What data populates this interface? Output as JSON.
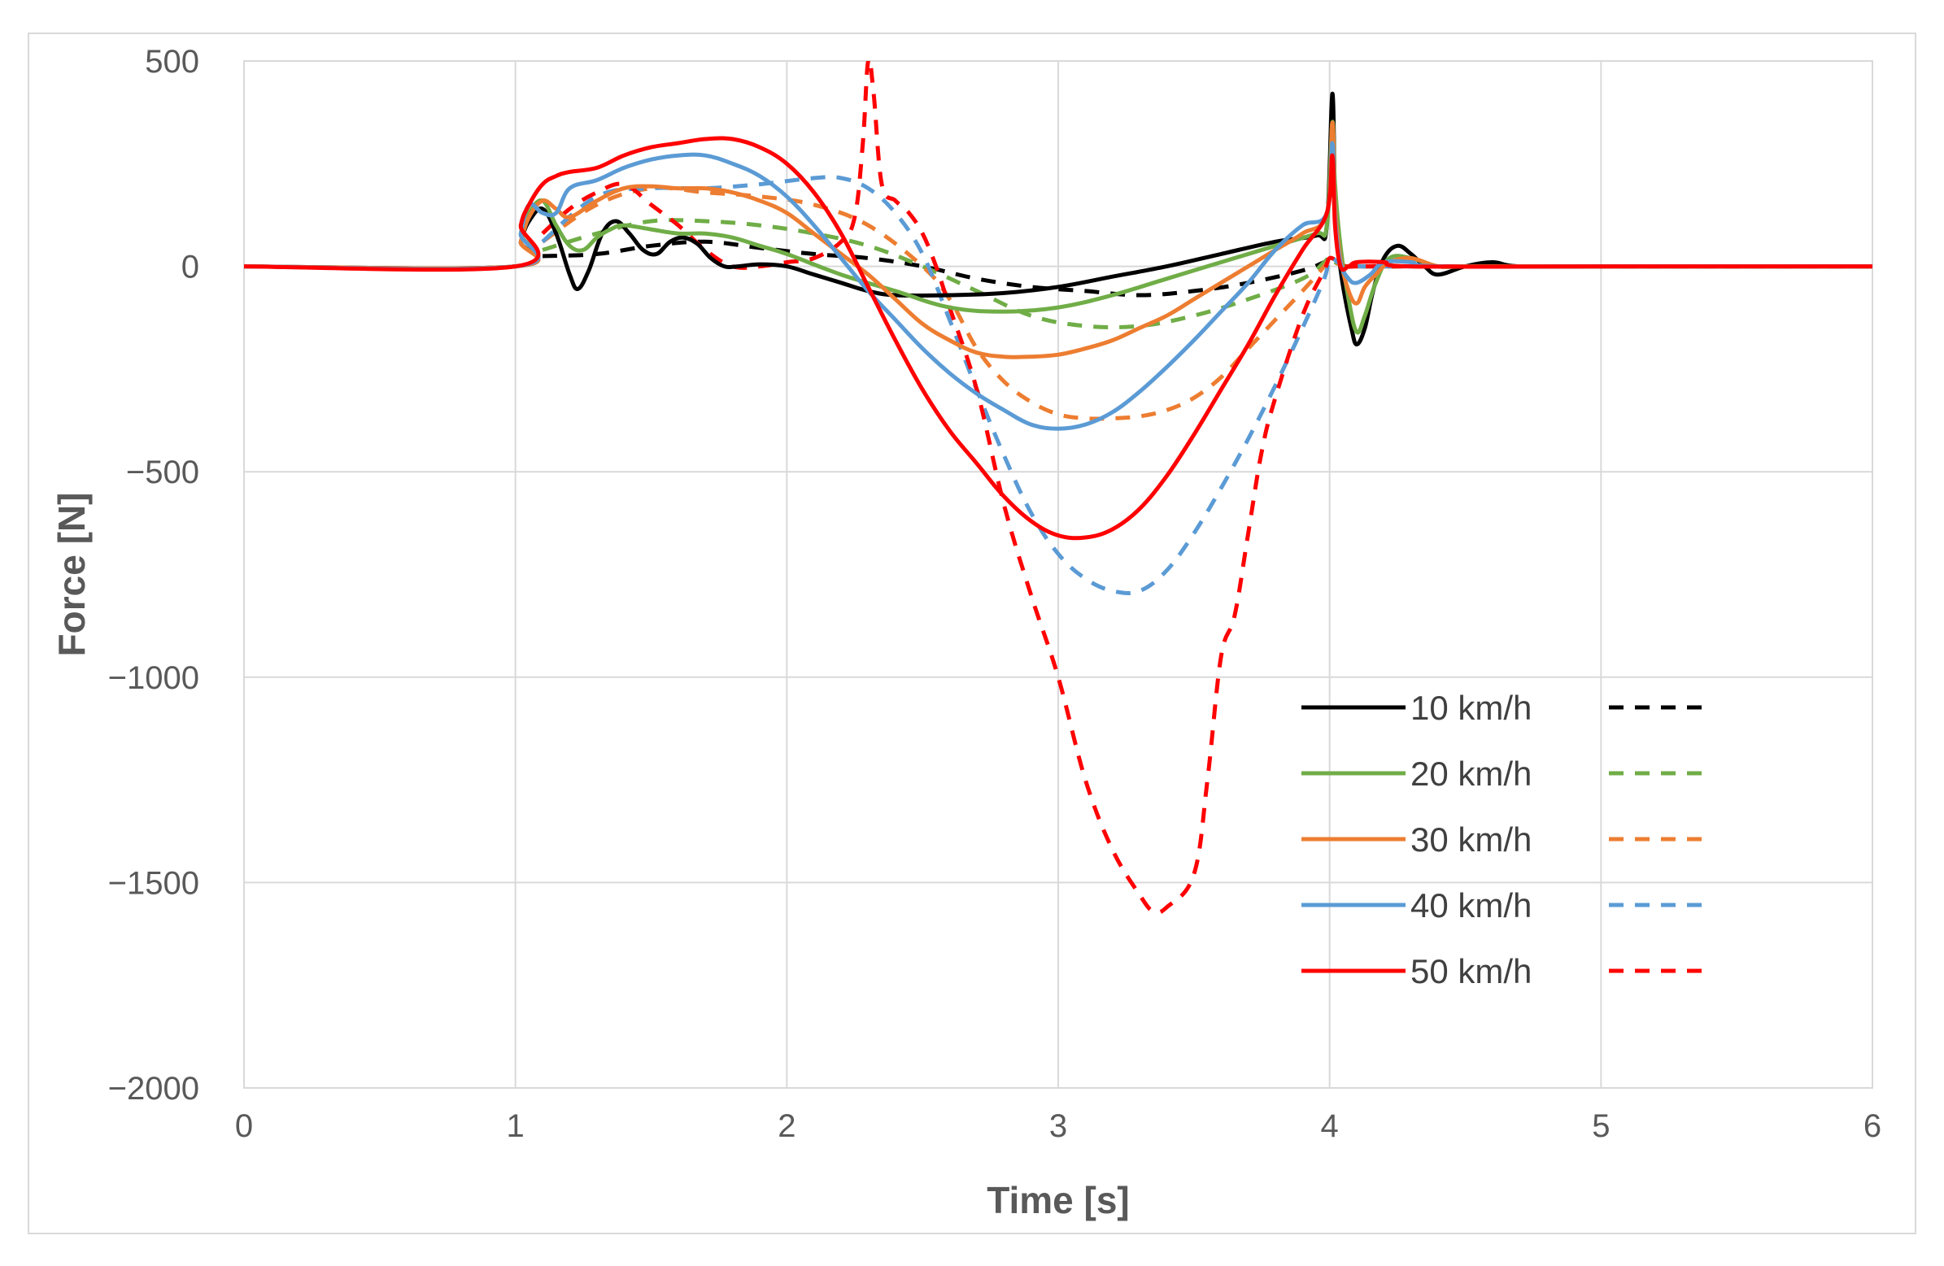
{
  "chart_data": {
    "type": "line",
    "title": "",
    "xlabel": "Time [s]",
    "ylabel": "Force [N]",
    "xlim": [
      0,
      6
    ],
    "ylim": [
      -2000,
      500
    ],
    "xticks": [
      0,
      1,
      2,
      3,
      4,
      5,
      6
    ],
    "yticks": [
      500,
      0,
      -500,
      -1000,
      -1500,
      -2000
    ],
    "xtick_labels": [
      "0",
      "1",
      "2",
      "3",
      "4",
      "5",
      "6"
    ],
    "ytick_labels": [
      "500",
      "0",
      "−500",
      "−1000",
      "−1500",
      "−2000"
    ],
    "grid": true,
    "legend_position": "bottom-right",
    "legend": [
      {
        "label": "10 km/h",
        "color": "#000000"
      },
      {
        "label": "20 km/h",
        "color": "#70ad47"
      },
      {
        "label": "30 km/h",
        "color": "#ed7d31"
      },
      {
        "label": "40 km/h",
        "color": "#5b9bd5"
      },
      {
        "label": "50 km/h",
        "color": "#ff0000"
      }
    ],
    "series": [
      {
        "name": "10 km/h solid",
        "color": "#000000",
        "dash": false,
        "x": [
          0,
          1.0,
          1.02,
          1.05,
          1.1,
          1.15,
          1.2,
          1.23,
          1.27,
          1.32,
          1.37,
          1.42,
          1.47,
          1.52,
          1.57,
          1.62,
          1.67,
          1.72,
          1.77,
          1.82,
          1.9,
          2.0,
          2.1,
          2.2,
          2.3,
          2.4,
          2.6,
          2.8,
          3.0,
          3.2,
          3.4,
          3.6,
          3.8,
          3.95,
          3.99,
          4.01,
          4.02,
          4.03,
          4.05,
          4.08,
          4.1,
          4.13,
          4.16,
          4.2,
          4.25,
          4.3,
          4.35,
          4.4,
          4.5,
          4.6,
          4.7,
          5,
          6
        ],
        "y": [
          0,
          0,
          60,
          110,
          140,
          80,
          -20,
          -55,
          -10,
          80,
          110,
          80,
          40,
          30,
          60,
          70,
          55,
          20,
          0,
          0,
          5,
          0,
          -20,
          -40,
          -60,
          -70,
          -70,
          -65,
          -50,
          -25,
          0,
          30,
          60,
          75,
          100,
          420,
          150,
          50,
          -50,
          -150,
          -190,
          -150,
          -60,
          20,
          50,
          30,
          0,
          -20,
          0,
          10,
          0,
          0,
          0
        ]
      },
      {
        "name": "10 km/h dashed",
        "color": "#000000",
        "dash": true,
        "x": [
          1.1,
          1.3,
          1.5,
          1.7,
          1.9,
          2.1,
          2.3,
          2.5,
          2.7,
          2.9,
          3.1,
          3.3,
          3.5,
          3.7,
          3.9,
          3.98,
          4.0,
          4.02,
          4.05,
          4.1,
          4.2,
          5,
          6
        ],
        "y": [
          25,
          30,
          50,
          60,
          45,
          30,
          20,
          0,
          -30,
          -50,
          -60,
          -70,
          -60,
          -40,
          -10,
          10,
          15,
          5,
          0,
          0,
          0,
          0,
          0
        ]
      },
      {
        "name": "20 km/h solid",
        "color": "#70ad47",
        "dash": false,
        "x": [
          0,
          1.0,
          1.02,
          1.05,
          1.1,
          1.15,
          1.2,
          1.25,
          1.3,
          1.35,
          1.4,
          1.5,
          1.6,
          1.7,
          1.8,
          1.9,
          2.0,
          2.2,
          2.4,
          2.6,
          2.8,
          3.0,
          3.2,
          3.4,
          3.6,
          3.8,
          3.95,
          3.99,
          4.01,
          4.02,
          4.04,
          4.07,
          4.1,
          4.13,
          4.17,
          4.22,
          4.3,
          4.4,
          4.5,
          4.6,
          5,
          6
        ],
        "y": [
          0,
          0,
          80,
          130,
          160,
          100,
          50,
          40,
          70,
          90,
          100,
          90,
          80,
          80,
          70,
          50,
          30,
          -20,
          -60,
          -100,
          -110,
          -100,
          -70,
          -30,
          10,
          50,
          80,
          100,
          350,
          200,
          50,
          -80,
          -160,
          -120,
          -40,
          20,
          20,
          0,
          0,
          0,
          0,
          0
        ]
      },
      {
        "name": "20 km/h dashed",
        "color": "#70ad47",
        "dash": true,
        "x": [
          1.1,
          1.3,
          1.5,
          1.7,
          1.9,
          2.1,
          2.3,
          2.5,
          2.7,
          2.9,
          3.1,
          3.3,
          3.5,
          3.7,
          3.9,
          3.98,
          4.0,
          4.02,
          4.06,
          4.1,
          4.2,
          5,
          6
        ],
        "y": [
          40,
          80,
          110,
          110,
          100,
          80,
          50,
          0,
          -60,
          -120,
          -145,
          -145,
          -120,
          -80,
          -30,
          10,
          25,
          10,
          0,
          0,
          0,
          0,
          0
        ]
      },
      {
        "name": "30 km/h solid",
        "color": "#ed7d31",
        "dash": false,
        "x": [
          0,
          1.0,
          1.02,
          1.05,
          1.1,
          1.15,
          1.2,
          1.3,
          1.4,
          1.5,
          1.6,
          1.7,
          1.8,
          1.9,
          2.0,
          2.1,
          2.2,
          2.3,
          2.4,
          2.5,
          2.6,
          2.7,
          2.8,
          2.9,
          3.0,
          3.1,
          3.2,
          3.3,
          3.4,
          3.5,
          3.6,
          3.7,
          3.8,
          3.9,
          3.99,
          4.01,
          4.02,
          4.04,
          4.07,
          4.1,
          4.13,
          4.17,
          4.22,
          4.3,
          4.4,
          4.5,
          5,
          6
        ],
        "y": [
          0,
          0,
          60,
          120,
          160,
          140,
          120,
          160,
          190,
          195,
          190,
          190,
          180,
          160,
          130,
          80,
          30,
          -20,
          -80,
          -140,
          -180,
          -210,
          -220,
          -220,
          -215,
          -200,
          -180,
          -150,
          -120,
          -80,
          -40,
          0,
          40,
          80,
          130,
          350,
          150,
          20,
          -60,
          -90,
          -50,
          -20,
          10,
          20,
          0,
          0,
          0,
          0
        ]
      },
      {
        "name": "30 km/h dashed",
        "color": "#ed7d31",
        "dash": true,
        "x": [
          1.1,
          1.3,
          1.5,
          1.7,
          1.9,
          2.1,
          2.3,
          2.5,
          2.6,
          2.7,
          2.8,
          2.9,
          3.0,
          3.1,
          3.2,
          3.3,
          3.4,
          3.5,
          3.6,
          3.7,
          3.8,
          3.9,
          3.98,
          4.0,
          4.02,
          4.06,
          4.1,
          4.2,
          5,
          6
        ],
        "y": [
          60,
          150,
          190,
          180,
          170,
          150,
          100,
          0,
          -80,
          -200,
          -280,
          -330,
          -360,
          -370,
          -370,
          -365,
          -350,
          -320,
          -270,
          -200,
          -130,
          -60,
          0,
          20,
          10,
          0,
          0,
          0,
          0,
          0
        ]
      },
      {
        "name": "40 km/h solid",
        "color": "#5b9bd5",
        "dash": false,
        "x": [
          0,
          1.0,
          1.02,
          1.05,
          1.1,
          1.15,
          1.2,
          1.3,
          1.4,
          1.5,
          1.6,
          1.7,
          1.8,
          1.9,
          2.0,
          2.1,
          2.2,
          2.3,
          2.4,
          2.5,
          2.6,
          2.7,
          2.8,
          2.9,
          3.0,
          3.1,
          3.2,
          3.3,
          3.4,
          3.5,
          3.6,
          3.7,
          3.8,
          3.9,
          3.99,
          4.01,
          4.02,
          4.04,
          4.07,
          4.1,
          4.15,
          4.2,
          4.3,
          4.4,
          5,
          6
        ],
        "y": [
          0,
          0,
          80,
          150,
          130,
          130,
          190,
          210,
          240,
          260,
          270,
          270,
          250,
          220,
          170,
          100,
          20,
          -60,
          -130,
          -200,
          -260,
          -310,
          -350,
          -385,
          -395,
          -385,
          -355,
          -305,
          -245,
          -180,
          -110,
          -40,
          40,
          100,
          130,
          300,
          120,
          10,
          -30,
          -40,
          -20,
          10,
          10,
          0,
          0,
          0
        ]
      },
      {
        "name": "40 km/h dashed",
        "color": "#5b9bd5",
        "dash": true,
        "x": [
          1.1,
          1.3,
          1.5,
          1.7,
          1.9,
          2.1,
          2.2,
          2.3,
          2.4,
          2.5,
          2.6,
          2.7,
          2.8,
          2.9,
          3.0,
          3.1,
          3.2,
          3.3,
          3.4,
          3.5,
          3.6,
          3.7,
          3.8,
          3.9,
          3.98,
          4.0,
          4.03,
          4.06,
          4.1,
          4.2,
          5,
          6
        ],
        "y": [
          60,
          170,
          190,
          190,
          200,
          215,
          215,
          190,
          130,
          30,
          -130,
          -300,
          -460,
          -600,
          -700,
          -760,
          -790,
          -790,
          -740,
          -650,
          -540,
          -420,
          -290,
          -150,
          -30,
          20,
          10,
          0,
          0,
          0,
          0,
          0
        ]
      },
      {
        "name": "50 km/h solid",
        "color": "#ff0000",
        "dash": false,
        "x": [
          0,
          1.0,
          1.02,
          1.05,
          1.1,
          1.15,
          1.2,
          1.3,
          1.4,
          1.5,
          1.6,
          1.7,
          1.8,
          1.9,
          2.0,
          2.1,
          2.2,
          2.3,
          2.4,
          2.5,
          2.6,
          2.7,
          2.8,
          2.9,
          3.0,
          3.1,
          3.2,
          3.3,
          3.4,
          3.5,
          3.6,
          3.7,
          3.8,
          3.9,
          3.99,
          4.01,
          4.02,
          4.04,
          4.07,
          4.1,
          4.2,
          4.3,
          5,
          6
        ],
        "y": [
          0,
          0,
          100,
          150,
          200,
          220,
          230,
          240,
          270,
          290,
          300,
          310,
          310,
          290,
          250,
          180,
          80,
          -50,
          -180,
          -300,
          -400,
          -480,
          -560,
          -620,
          -655,
          -660,
          -640,
          -590,
          -510,
          -410,
          -300,
          -190,
          -70,
          40,
          130,
          270,
          100,
          0,
          0,
          10,
          10,
          0,
          0,
          0
        ]
      },
      {
        "name": "50 km/h dashed",
        "color": "#ff0000",
        "dash": true,
        "x": [
          1.1,
          1.2,
          1.3,
          1.4,
          1.5,
          1.6,
          1.7,
          1.8,
          1.9,
          2.0,
          2.1,
          2.2,
          2.25,
          2.28,
          2.3,
          2.32,
          2.35,
          2.4,
          2.45,
          2.5,
          2.55,
          2.6,
          2.7,
          2.8,
          2.9,
          3.0,
          3.1,
          3.2,
          3.3,
          3.35,
          3.4,
          3.5,
          3.55,
          3.6,
          3.65,
          3.7,
          3.75,
          3.8,
          3.9,
          3.98,
          4.0,
          4.03,
          4.06,
          4.1,
          4.2,
          5,
          6
        ],
        "y": [
          80,
          140,
          180,
          200,
          150,
          100,
          40,
          0,
          0,
          10,
          20,
          60,
          120,
          300,
          500,
          420,
          200,
          160,
          130,
          80,
          0,
          -100,
          -300,
          -580,
          -800,
          -1000,
          -1250,
          -1420,
          -1530,
          -1570,
          -1560,
          -1480,
          -1250,
          -950,
          -850,
          -650,
          -450,
          -320,
          -120,
          -10,
          20,
          10,
          0,
          0,
          0,
          0,
          0
        ]
      }
    ]
  }
}
